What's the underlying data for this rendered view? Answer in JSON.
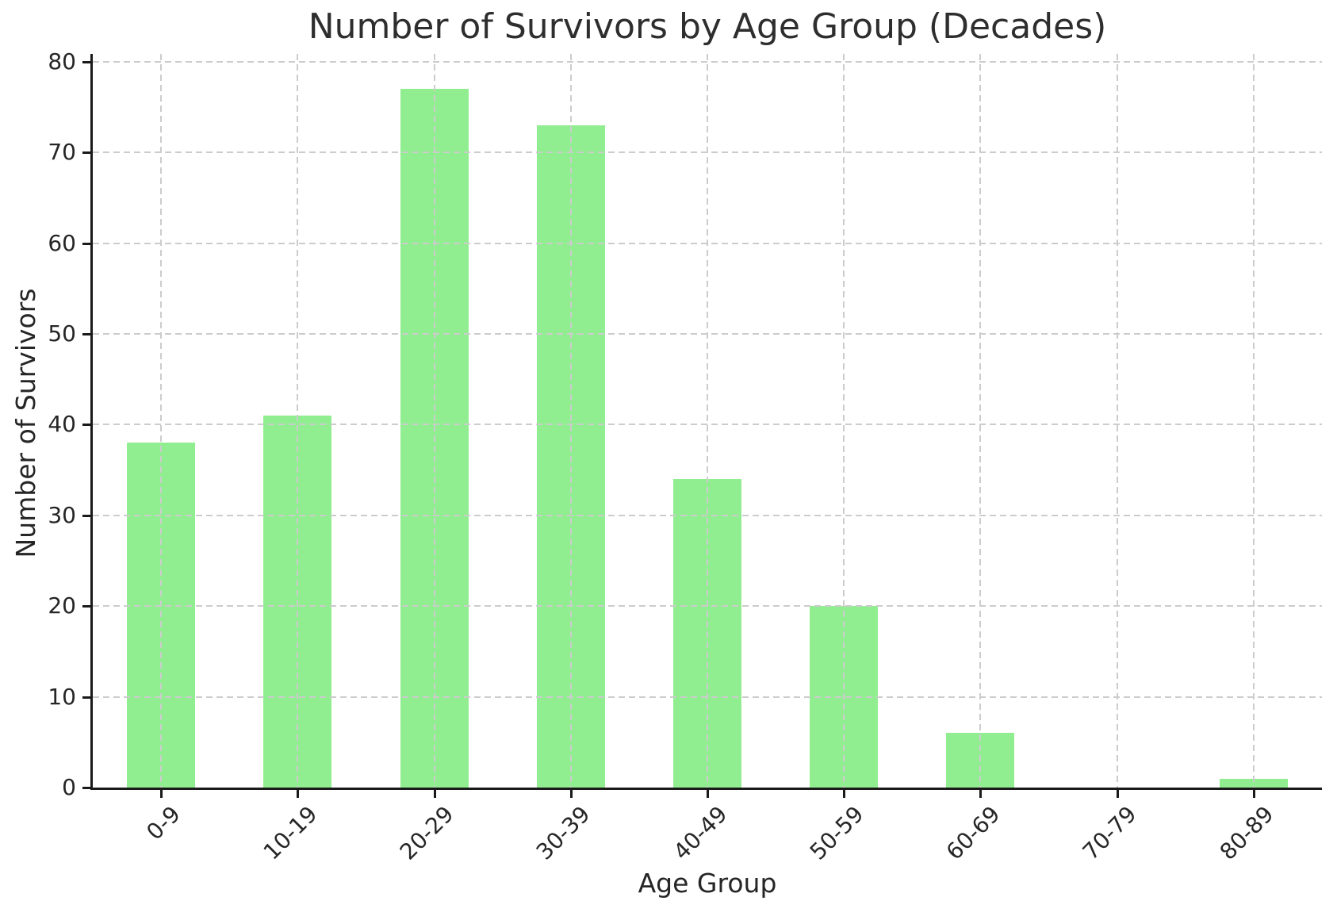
{
  "chart_data": {
    "type": "bar",
    "title": "Number of Survivors by Age Group (Decades)",
    "xlabel": "Age Group",
    "ylabel": "Number of Survivors",
    "categories": [
      "0-9",
      "10-19",
      "20-29",
      "30-39",
      "40-49",
      "50-59",
      "60-69",
      "70-79",
      "80-89"
    ],
    "values": [
      38,
      41,
      77,
      73,
      34,
      20,
      6,
      0,
      1
    ],
    "yticks": [
      0,
      10,
      20,
      30,
      40,
      50,
      60,
      70,
      80
    ],
    "ylim": [
      0,
      80.85
    ],
    "bar_color": "#90EE90",
    "grid_color": "#cccccc",
    "spine_color": "#1a1a1a",
    "text_color": "#262626",
    "grid": "dashed, horizontal and vertical, drawn above bars",
    "legend_position": "none",
    "bar_relative_width": 0.5,
    "xtick_rotation_deg": 45
  }
}
